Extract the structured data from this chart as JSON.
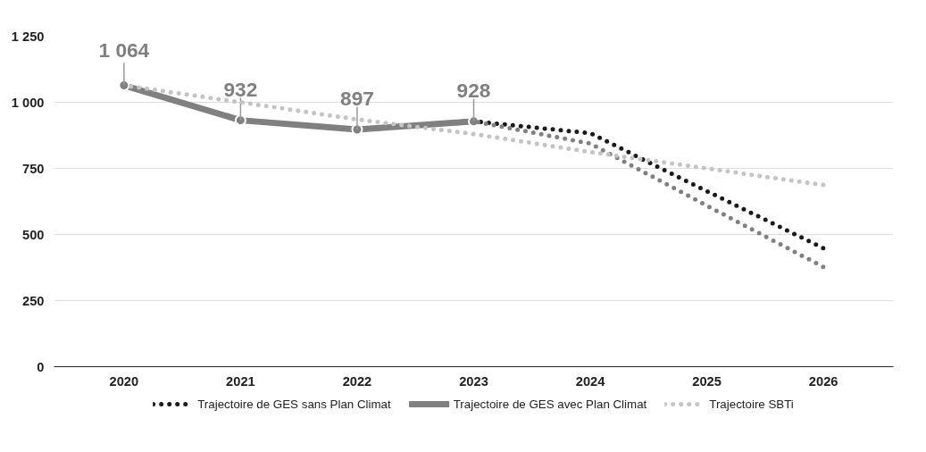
{
  "chart_data": {
    "type": "line",
    "categories": [
      "2020",
      "2021",
      "2022",
      "2023",
      "2024",
      "2025",
      "2026"
    ],
    "ylim": [
      0,
      1250
    ],
    "yticks": [
      0,
      250,
      500,
      750,
      {
        "value": 1000,
        "label": "1 000"
      },
      {
        "value": 1250,
        "label": "1 250"
      }
    ],
    "grid": "y",
    "legend": "bottom",
    "series": [
      {
        "name": "Trajectoire de GES sans Plan Climat",
        "color": "#1a1a1a",
        "line_style": "dotted",
        "marker": "none",
        "values": [
          null,
          null,
          null,
          928,
          883,
          664,
          448
        ]
      },
      {
        "name": "Trajectoire de GES avec Plan Climat",
        "color": "#808080",
        "line_style": "solid",
        "marker": "circle",
        "values": [
          1064,
          932,
          897,
          928,
          null,
          null,
          null
        ],
        "value_labels": [
          "1 064",
          "932",
          "897",
          "928",
          null,
          null,
          null
        ]
      },
      {
        "color": "#808080",
        "line_style": "dotted",
        "marker": "none",
        "values": [
          null,
          null,
          null,
          928,
          844,
          609,
          377
        ]
      },
      {
        "name": "Trajectoire SBTi",
        "color": "#c4c4c4",
        "line_style": "dotted",
        "marker": "none",
        "values": [
          1064,
          1000,
          935,
          880,
          812,
          750,
          687
        ]
      }
    ]
  }
}
